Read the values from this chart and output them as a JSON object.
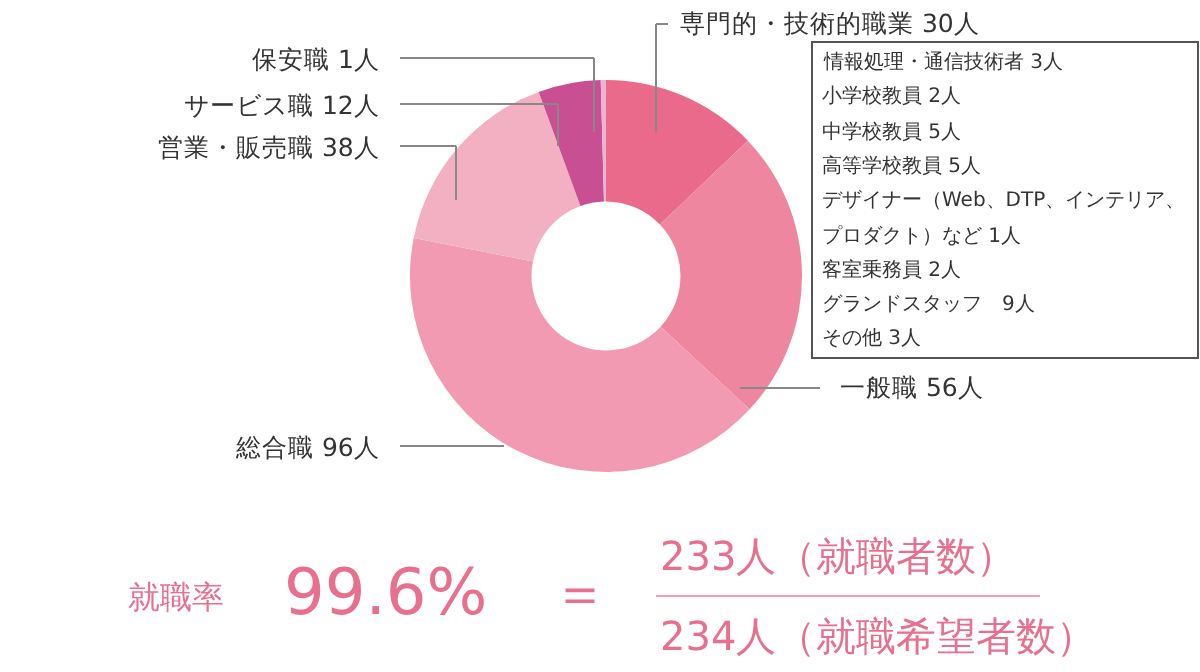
{
  "chart_data": {
    "type": "donut",
    "categories": [
      "専門的・技術的職業",
      "一般職",
      "総合職",
      "営業・販売職",
      "サービス職",
      "保安職"
    ],
    "values": [
      30,
      56,
      96,
      38,
      12,
      1
    ],
    "value_labels": [
      "30人",
      "56人",
      "96人",
      "38人",
      "12人",
      "1人"
    ],
    "colors": [
      "#ea6a8c",
      "#ee86a0",
      "#f19ab2",
      "#f3b0c2",
      "#c94f93",
      "#e8b6d2"
    ],
    "annotations": [
      "情報処理・通信技術者 3人",
      "小学校教員 2人",
      "中学校教員 5人",
      "高等学校教員 5人",
      "デザイナー（Web、DTP、インテリア、",
      "プロダクト）など 1人",
      "客室乗務員 2人",
      "グランドスタッフ　9人",
      "その他 3人",
      "就職率",
      "99.6%",
      "＝",
      "233人（就職者数）",
      "234人（就職希望者数）"
    ],
    "legend": false
  }
}
